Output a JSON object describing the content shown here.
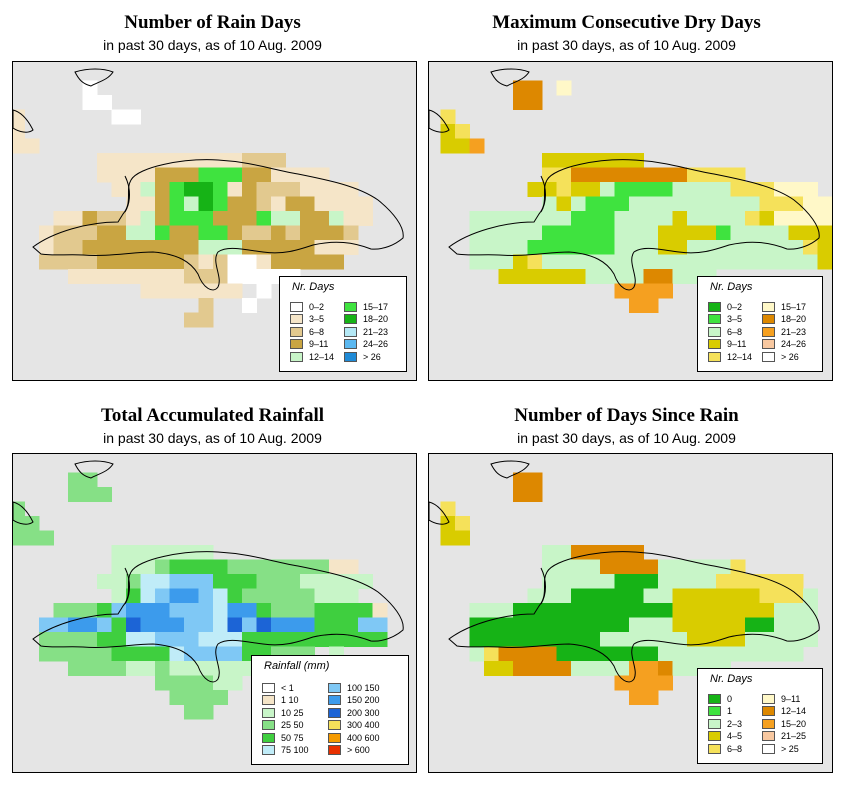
{
  "panels": [
    {
      "title": "Number of Rain Days",
      "subtitle": "in past 30 days, as of  10 Aug. 2009",
      "legend_title": "Nr. Days",
      "legend": [
        {
          "label": "0–2",
          "color": "#ffffff"
        },
        {
          "label": "3–5",
          "color": "#f5e5c8"
        },
        {
          "label": "6–8",
          "color": "#e2c98f"
        },
        {
          "label": "9–11",
          "color": "#c9a542"
        },
        {
          "label": "12–14",
          "color": "#c8f5c8"
        },
        {
          "label": "15–17",
          "color": "#3fe33f"
        },
        {
          "label": "18–20",
          "color": "#16b316"
        },
        {
          "label": "21–23",
          "color": "#b4e8f5"
        },
        {
          "label": "24–26",
          "color": "#5bb8f0"
        },
        {
          "label": "> 26",
          "color": "#1f8ad6"
        }
      ]
    },
    {
      "title": "Maximum Consecutive Dry Days",
      "subtitle": "in past 30 days, as of  10 Aug. 2009",
      "legend_title": "Nr. Days",
      "legend": [
        {
          "label": "0–2",
          "color": "#16b316"
        },
        {
          "label": "3–5",
          "color": "#3fe33f"
        },
        {
          "label": "6–8",
          "color": "#c8f5c8"
        },
        {
          "label": "9–11",
          "color": "#d9cc00"
        },
        {
          "label": "12–14",
          "color": "#f5e15a"
        },
        {
          "label": "15–17",
          "color": "#fff8c8"
        },
        {
          "label": "18–20",
          "color": "#dd8800"
        },
        {
          "label": "21–23",
          "color": "#f5a020"
        },
        {
          "label": "24–26",
          "color": "#f8c8a0"
        },
        {
          "label": "> 26",
          "color": "#ffffff"
        }
      ]
    },
    {
      "title": "Total Accumulated Rainfall",
      "subtitle": "in past 30 days, as of  10 Aug. 2009",
      "legend_title": "Rainfall (mm)",
      "legend": [
        {
          "label": "< 1",
          "color": "#ffffff"
        },
        {
          "label": "1  10",
          "color": "#f5e5c8"
        },
        {
          "label": "10  25",
          "color": "#c8f5c8"
        },
        {
          "label": "25  50",
          "color": "#86e086"
        },
        {
          "label": "50  75",
          "color": "#3fcf3f"
        },
        {
          "label": "75  100",
          "color": "#c0ecf8"
        },
        {
          "label": "100  150",
          "color": "#7fc8f5"
        },
        {
          "label": "150  200",
          "color": "#3c9bec"
        },
        {
          "label": "200  300",
          "color": "#1c64d6"
        },
        {
          "label": "300  400",
          "color": "#f5e15a"
        },
        {
          "label": "400  600",
          "color": "#f59a00"
        },
        {
          "label": "> 600",
          "color": "#e83000"
        }
      ]
    },
    {
      "title": "Number of Days Since Rain",
      "subtitle": "in past 30 days, as of  10 Aug. 2009",
      "legend_title": "Nr. Days",
      "legend": [
        {
          "label": "0",
          "color": "#16b316"
        },
        {
          "label": "1",
          "color": "#3fe33f"
        },
        {
          "label": "2–3",
          "color": "#c8f5c8"
        },
        {
          "label": "4–5",
          "color": "#d9cc00"
        },
        {
          "label": "6–8",
          "color": "#f5e15a"
        },
        {
          "label": "9–11",
          "color": "#fff8c8"
        },
        {
          "label": "12–14",
          "color": "#dd8800"
        },
        {
          "label": "15–20",
          "color": "#f5a020"
        },
        {
          "label": "21–25",
          "color": "#f8c8a0"
        },
        {
          "label": "> 25",
          "color": "#ffffff"
        }
      ]
    }
  ]
}
